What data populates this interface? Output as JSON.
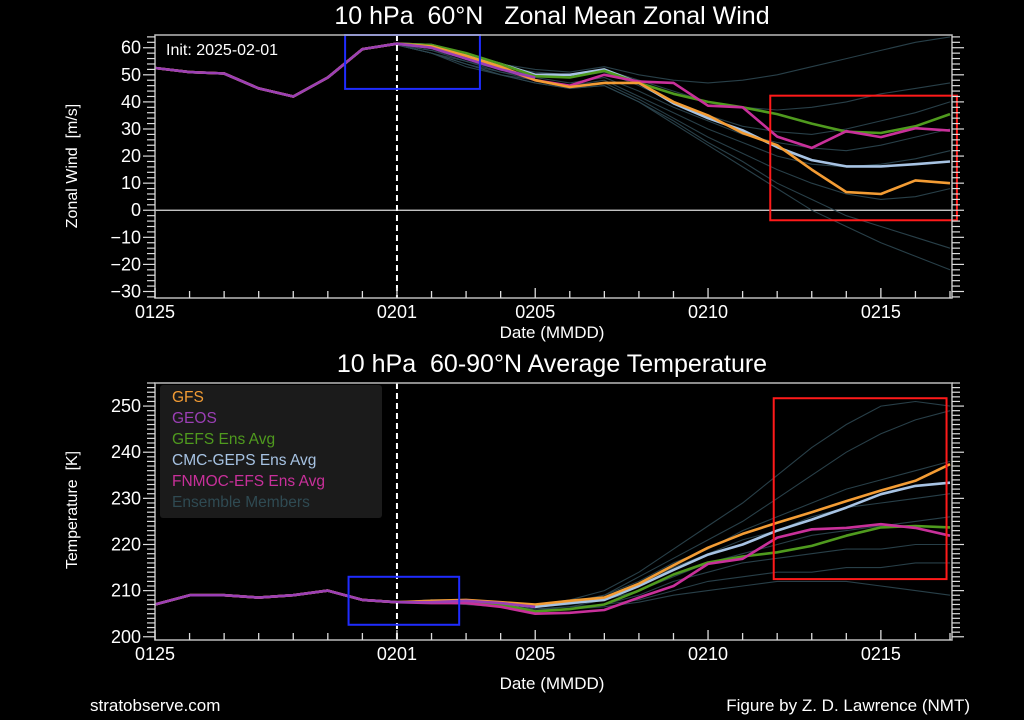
{
  "chart_data": [
    {
      "type": "line",
      "title": "10 hPa  60°N   Zonal Mean Zonal Wind",
      "xlabel": "Date (MMDD)",
      "ylabel": "Zonal Wind  [m/s]",
      "annotation": "Init: 2025-02-01",
      "x": [
        "0125",
        "0126",
        "0127",
        "0128",
        "0129",
        "0130",
        "0131",
        "0201",
        "0202",
        "0203",
        "0204",
        "0205",
        "0206",
        "0207",
        "0208",
        "0209",
        "0210",
        "0211",
        "0212",
        "0213",
        "0214",
        "0215",
        "0216",
        "0217"
      ],
      "xticklabels": [
        "0125",
        "0201",
        "0205",
        "0210",
        "0215"
      ],
      "yticks": [
        60,
        50,
        40,
        30,
        20,
        10,
        0,
        -10,
        -20,
        -30
      ],
      "ylim": [
        -32.4,
        64.7
      ],
      "init_date": "0201",
      "zero_line": true,
      "series": [
        {
          "name": "GFS",
          "color": "#f39c34",
          "values": [
            52.5,
            51,
            50.5,
            45,
            42,
            49,
            59.5,
            61.5,
            60.5,
            57,
            53,
            48,
            45.5,
            47,
            47,
            40,
            35,
            28.5,
            24,
            15,
            6.7,
            6,
            11,
            10
          ]
        },
        {
          "name": "GEOS",
          "color": "#9b3fb5",
          "values": [
            52.5,
            51,
            50.5,
            45,
            42,
            49,
            59.5,
            61.5,
            60,
            56,
            52,
            49,
            null,
            null,
            null,
            null,
            null,
            null,
            null,
            null,
            null,
            null,
            null,
            null
          ]
        },
        {
          "name": "GEFS Ens Avg",
          "color": "#4f9a1e",
          "values": [
            52.5,
            51,
            50.5,
            45,
            42,
            49,
            59.5,
            61.5,
            61,
            58,
            54,
            49.5,
            49,
            51.5,
            47,
            43,
            40,
            38,
            35.5,
            32,
            29,
            28.5,
            31,
            35.5
          ]
        },
        {
          "name": "CMC-GEPS Ens Avg",
          "color": "#a7c3e3",
          "values": [
            52.5,
            51,
            50.5,
            45,
            42,
            49,
            59.5,
            61.5,
            61,
            57.5,
            54,
            50,
            50,
            52,
            47,
            39.5,
            34,
            29.5,
            23.3,
            18.5,
            16.2,
            16.2,
            17,
            18
          ]
        },
        {
          "name": "FNMOC-EFS Ens Avg",
          "color": "#c8309a",
          "values": [
            52.5,
            51,
            50.5,
            45,
            42,
            49,
            59.5,
            61.5,
            60,
            56,
            52.5,
            48,
            46,
            50,
            47.5,
            47,
            38.6,
            38,
            27.2,
            23,
            29.2,
            27,
            30.3,
            29.4
          ]
        }
      ],
      "members": [
        [
          null,
          null,
          null,
          null,
          null,
          null,
          null,
          61,
          60,
          57,
          54,
          52,
          51,
          53,
          50,
          48,
          47,
          48,
          50,
          53,
          56,
          59,
          62,
          64
        ],
        [
          null,
          null,
          null,
          null,
          null,
          null,
          null,
          61,
          59,
          56,
          53,
          51,
          50,
          52,
          48,
          44,
          40,
          38,
          37,
          38,
          40,
          43,
          45,
          47
        ],
        [
          null,
          null,
          null,
          null,
          null,
          null,
          null,
          61,
          59,
          55,
          52,
          50,
          49,
          51,
          46,
          40,
          35,
          31,
          29,
          28,
          30,
          33,
          36,
          40
        ],
        [
          null,
          null,
          null,
          null,
          null,
          null,
          null,
          61,
          58,
          55,
          51,
          49,
          47,
          49,
          44,
          38,
          33,
          28,
          25,
          23,
          22,
          24,
          27,
          30
        ],
        [
          null,
          null,
          null,
          null,
          null,
          null,
          null,
          61,
          58,
          54,
          51,
          48,
          46,
          48,
          42,
          36,
          30,
          25,
          20,
          17,
          16,
          17,
          19,
          22
        ],
        [
          null,
          null,
          null,
          null,
          null,
          null,
          null,
          61,
          58,
          54,
          50,
          48,
          46,
          47,
          41,
          34,
          27,
          21,
          15,
          10,
          6,
          4,
          5,
          8
        ],
        [
          null,
          null,
          null,
          null,
          null,
          null,
          null,
          61,
          58,
          54,
          50,
          47,
          45,
          46,
          40,
          33,
          25,
          18,
          10,
          4,
          -2,
          -6,
          -10,
          -14
        ],
        [
          null,
          null,
          null,
          null,
          null,
          null,
          null,
          61,
          58,
          53,
          50,
          47,
          45,
          46,
          40,
          32,
          24,
          16,
          8,
          0,
          -6,
          -12,
          -17,
          -22
        ]
      ],
      "highlight_boxes": [
        {
          "color": "#1f2cff",
          "x_days": [
            5.5,
            9.4
          ],
          "y_range": [
            44.8,
            64.7
          ]
        },
        {
          "color": "#ff1a1a",
          "x_days": [
            17.8,
            23.2
          ],
          "y_range": [
            -3.7,
            42.3
          ]
        }
      ]
    },
    {
      "type": "line",
      "title": "10 hPa  60-90°N Average Temperature",
      "xlabel": "Date (MMDD)",
      "ylabel": "Temperature  [K]",
      "x": [
        "0125",
        "0126",
        "0127",
        "0128",
        "0129",
        "0130",
        "0131",
        "0201",
        "0202",
        "0203",
        "0204",
        "0205",
        "0206",
        "0207",
        "0208",
        "0209",
        "0210",
        "0211",
        "0212",
        "0213",
        "0214",
        "0215",
        "0216",
        "0217"
      ],
      "xticklabels": [
        "0125",
        "0201",
        "0205",
        "0210",
        "0215"
      ],
      "yticks": [
        250,
        240,
        230,
        220,
        210,
        200
      ],
      "ylim": [
        199.3,
        255
      ],
      "init_date": "0201",
      "legend_position": "top-left",
      "series": [
        {
          "name": "GFS",
          "color": "#f39c34",
          "values": [
            207,
            209,
            209,
            208.5,
            209,
            210,
            208,
            207.5,
            207.8,
            208,
            207.5,
            207,
            207.8,
            208.5,
            211.5,
            215.5,
            219.3,
            222.3,
            224.7,
            227,
            229.4,
            231.7,
            233.8,
            237.4
          ]
        },
        {
          "name": "GEOS",
          "color": "#9b3fb5",
          "values": [
            207,
            209,
            209,
            208.5,
            209,
            210,
            208,
            207.5,
            207.5,
            207.8,
            207.3,
            206.5,
            null,
            null,
            null,
            null,
            null,
            null,
            null,
            null,
            null,
            null,
            null,
            null
          ]
        },
        {
          "name": "GEFS Ens Avg",
          "color": "#4f9a1e",
          "values": [
            207,
            209,
            209,
            208.5,
            209,
            210,
            208,
            207.5,
            207.5,
            207.5,
            207,
            205.5,
            206,
            207,
            210,
            213.5,
            216.1,
            217.4,
            218.3,
            219.7,
            221.9,
            223.7,
            224,
            223.7
          ]
        },
        {
          "name": "CMC-GEPS Ens Avg",
          "color": "#a7c3e3",
          "values": [
            207,
            209,
            209,
            208.5,
            209,
            210,
            208,
            207.5,
            207.5,
            207.8,
            207.3,
            206.5,
            207.3,
            208,
            211,
            214.5,
            217.8,
            220,
            223,
            225.4,
            228,
            230.9,
            232.7,
            233.4
          ]
        },
        {
          "name": "FNMOC-EFS Ens Avg",
          "color": "#c8309a",
          "values": [
            207,
            209,
            209,
            208.5,
            209,
            210,
            208,
            207.5,
            207.3,
            207.3,
            206.5,
            205,
            205.2,
            205.8,
            208.5,
            211,
            215.8,
            216.9,
            221.5,
            223.3,
            223.6,
            224.4,
            223.6,
            221.9
          ]
        }
      ],
      "members_label": "Ensemble Members",
      "members_color": "#2c4650",
      "members": [
        [
          null,
          null,
          null,
          null,
          null,
          null,
          null,
          207.5,
          208,
          208,
          207.5,
          207,
          208,
          210,
          214,
          219,
          224,
          229,
          235,
          241,
          246,
          250,
          251,
          250
        ],
        [
          null,
          null,
          null,
          null,
          null,
          null,
          null,
          207.5,
          208,
          208,
          207.5,
          207,
          207.5,
          209,
          213,
          217,
          221,
          225,
          230,
          235,
          240,
          244,
          247,
          249
        ],
        [
          null,
          null,
          null,
          null,
          null,
          null,
          null,
          207.5,
          208,
          208,
          207,
          206.5,
          207,
          209,
          212,
          216,
          219,
          223,
          226,
          229,
          232,
          234,
          236,
          238
        ],
        [
          null,
          null,
          null,
          null,
          null,
          null,
          null,
          207.5,
          208,
          207.5,
          207,
          206.5,
          207,
          208,
          211,
          215,
          218,
          221,
          223,
          226,
          228,
          229,
          230,
          231
        ],
        [
          null,
          null,
          null,
          null,
          null,
          null,
          null,
          207.5,
          208,
          207.5,
          207,
          206,
          206.5,
          208,
          210,
          213,
          216,
          218,
          220,
          222,
          223,
          224,
          225,
          226
        ],
        [
          null,
          null,
          null,
          null,
          null,
          null,
          null,
          207.5,
          208,
          207.5,
          206.5,
          206,
          206.5,
          207,
          209,
          212,
          214,
          216,
          217,
          218,
          219,
          219,
          220,
          220
        ],
        [
          null,
          null,
          null,
          null,
          null,
          null,
          null,
          207.5,
          207.5,
          207,
          206.5,
          206,
          206,
          207,
          208,
          210,
          212,
          213,
          214,
          214,
          215,
          215,
          216,
          216
        ],
        [
          null,
          null,
          null,
          null,
          null,
          null,
          null,
          207.5,
          207.5,
          207,
          206.5,
          205.5,
          206,
          206.5,
          207.5,
          209,
          210,
          211,
          212,
          212,
          212,
          211,
          210,
          209
        ]
      ],
      "highlight_boxes": [
        {
          "color": "#1f2cff",
          "x_days": [
            5.6,
            8.8
          ],
          "y_range": [
            202.6,
            213
          ]
        },
        {
          "color": "#ff1a1a",
          "x_days": [
            17.9,
            22.9
          ],
          "y_range": [
            212.5,
            251.7
          ]
        }
      ]
    }
  ],
  "footer": {
    "left": "stratobserve.com",
    "right": "Figure by Z. D. Lawrence (NMT)"
  }
}
